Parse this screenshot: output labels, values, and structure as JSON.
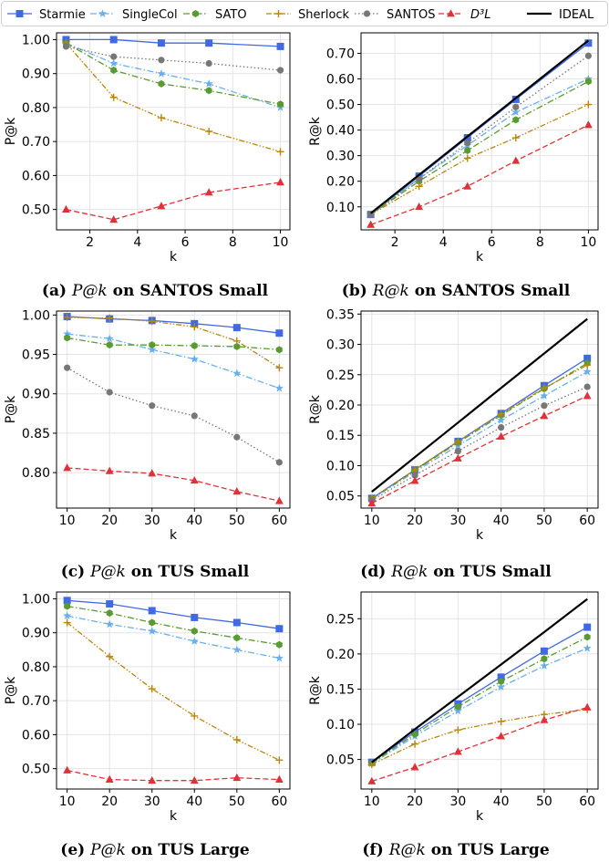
{
  "legend": [
    {
      "name": "Starmie",
      "color": "#4169e1",
      "marker": "square",
      "dash": "solid"
    },
    {
      "name": "SingleCol",
      "color": "#6aaeea",
      "marker": "star",
      "dash": "dashdot"
    },
    {
      "name": "SATO",
      "color": "#5a9a32",
      "marker": "hex",
      "dash": "dashdot"
    },
    {
      "name": "Sherlock",
      "color": "#b8860b",
      "marker": "plus",
      "dash": "dashdotdot"
    },
    {
      "name": "SANTOS",
      "color": "#777777",
      "marker": "circle",
      "dash": "dotted"
    },
    {
      "name": "D³L",
      "color": "#e0303a",
      "marker": "triangle",
      "dash": "dashed",
      "italic": true
    },
    {
      "name": "IDEAL",
      "color": "#000000",
      "marker": "none",
      "dash": "solid"
    }
  ],
  "captions": [
    {
      "label": "(a)",
      "metric": "P@k",
      "rest": "on SANTOS Small"
    },
    {
      "label": "(b)",
      "metric": "R@k",
      "rest": "on SANTOS Small"
    },
    {
      "label": "(c)",
      "metric": "P@k",
      "rest": "on TUS Small"
    },
    {
      "label": "(d)",
      "metric": "R@k",
      "rest": "on TUS Small"
    },
    {
      "label": "(e)",
      "metric": "P@k",
      "rest": "on TUS Large"
    },
    {
      "label": "(f)",
      "metric": "R@k",
      "rest": "on TUS Large"
    }
  ],
  "chart_data": [
    {
      "type": "line",
      "xlabel": "k",
      "ylabel": "P@k",
      "xlim": [
        0.6,
        10.4
      ],
      "ylim": [
        0.44,
        1.02
      ],
      "xticks": [
        2,
        4,
        6,
        8,
        10
      ],
      "yticks": [
        0.5,
        0.6,
        0.7,
        0.8,
        0.9,
        1.0
      ],
      "yfmt": 2,
      "x": [
        1,
        3,
        5,
        7,
        10
      ],
      "grid": true,
      "series": [
        {
          "name": "Starmie",
          "values": [
            1.0,
            1.0,
            0.99,
            0.99,
            0.98
          ]
        },
        {
          "name": "SingleCol",
          "values": [
            0.99,
            0.93,
            0.9,
            0.87,
            0.8
          ]
        },
        {
          "name": "SATO",
          "values": [
            0.99,
            0.91,
            0.87,
            0.85,
            0.81
          ]
        },
        {
          "name": "Sherlock",
          "values": [
            0.99,
            0.83,
            0.77,
            0.73,
            0.67
          ]
        },
        {
          "name": "SANTOS",
          "values": [
            0.98,
            0.95,
            0.94,
            0.93,
            0.91
          ]
        },
        {
          "name": "D³L",
          "values": [
            0.5,
            0.47,
            0.51,
            0.55,
            0.58
          ]
        }
      ]
    },
    {
      "type": "line",
      "xlabel": "k",
      "ylabel": "R@k",
      "xlim": [
        0.6,
        10.4
      ],
      "ylim": [
        0.01,
        0.78
      ],
      "xticks": [
        2,
        4,
        6,
        8,
        10
      ],
      "yticks": [
        0.1,
        0.2,
        0.3,
        0.4,
        0.5,
        0.6,
        0.7
      ],
      "yfmt": 2,
      "x": [
        1,
        3,
        5,
        7,
        10
      ],
      "grid": true,
      "series": [
        {
          "name": "Starmie",
          "values": [
            0.07,
            0.22,
            0.37,
            0.52,
            0.74
          ]
        },
        {
          "name": "SingleCol",
          "values": [
            0.07,
            0.21,
            0.34,
            0.47,
            0.6
          ]
        },
        {
          "name": "SATO",
          "values": [
            0.07,
            0.2,
            0.32,
            0.44,
            0.59
          ]
        },
        {
          "name": "Sherlock",
          "values": [
            0.07,
            0.18,
            0.29,
            0.37,
            0.5
          ]
        },
        {
          "name": "SANTOS",
          "values": [
            0.07,
            0.21,
            0.35,
            0.49,
            0.69
          ]
        },
        {
          "name": "D³L",
          "values": [
            0.03,
            0.1,
            0.18,
            0.28,
            0.42
          ]
        },
        {
          "name": "IDEAL",
          "values": [
            0.075,
            0.225,
            0.375,
            0.525,
            0.75
          ]
        }
      ]
    },
    {
      "type": "line",
      "xlabel": "k",
      "ylabel": "P@k",
      "xlim": [
        7.5,
        62.5
      ],
      "ylim": [
        0.755,
        1.005
      ],
      "xticks": [
        10,
        20,
        30,
        40,
        50,
        60
      ],
      "yticks": [
        0.8,
        0.85,
        0.9,
        0.95,
        1.0
      ],
      "yfmt": 2,
      "x": [
        10,
        20,
        30,
        40,
        50,
        60
      ],
      "grid": true,
      "series": [
        {
          "name": "Starmie",
          "values": [
            0.998,
            0.995,
            0.993,
            0.989,
            0.984,
            0.977
          ]
        },
        {
          "name": "SingleCol",
          "values": [
            0.976,
            0.97,
            0.956,
            0.944,
            0.926,
            0.907
          ]
        },
        {
          "name": "SATO",
          "values": [
            0.971,
            0.962,
            0.962,
            0.961,
            0.96,
            0.956
          ]
        },
        {
          "name": "Sherlock",
          "values": [
            0.997,
            0.996,
            0.992,
            0.985,
            0.967,
            0.933
          ]
        },
        {
          "name": "SANTOS",
          "values": [
            0.933,
            0.902,
            0.885,
            0.872,
            0.845,
            0.813
          ]
        },
        {
          "name": "D³L",
          "values": [
            0.806,
            0.802,
            0.799,
            0.79,
            0.776,
            0.764
          ]
        }
      ]
    },
    {
      "type": "line",
      "xlabel": "k",
      "ylabel": "R@k",
      "xlim": [
        7.5,
        62.5
      ],
      "ylim": [
        0.03,
        0.355
      ],
      "xticks": [
        10,
        20,
        30,
        40,
        50,
        60
      ],
      "yticks": [
        0.05,
        0.1,
        0.15,
        0.2,
        0.25,
        0.3,
        0.35
      ],
      "yfmt": 2,
      "x": [
        10,
        20,
        30,
        40,
        50,
        60
      ],
      "grid": true,
      "series": [
        {
          "name": "Starmie",
          "values": [
            0.046,
            0.093,
            0.14,
            0.186,
            0.232,
            0.277
          ]
        },
        {
          "name": "SingleCol",
          "values": [
            0.045,
            0.09,
            0.133,
            0.175,
            0.215,
            0.255
          ]
        },
        {
          "name": "SATO",
          "values": [
            0.045,
            0.092,
            0.138,
            0.183,
            0.227,
            0.269
          ]
        },
        {
          "name": "Sherlock",
          "values": [
            0.046,
            0.093,
            0.14,
            0.185,
            0.228,
            0.266
          ]
        },
        {
          "name": "SANTOS",
          "values": [
            0.043,
            0.084,
            0.124,
            0.163,
            0.199,
            0.23
          ]
        },
        {
          "name": "D³L",
          "values": [
            0.038,
            0.075,
            0.112,
            0.148,
            0.182,
            0.215
          ]
        },
        {
          "name": "IDEAL",
          "values": [
            0.057,
            0.114,
            0.171,
            0.228,
            0.285,
            0.342
          ]
        }
      ]
    },
    {
      "type": "line",
      "xlabel": "k",
      "ylabel": "P@k",
      "xlim": [
        7.5,
        62.5
      ],
      "ylim": [
        0.44,
        1.02
      ],
      "xticks": [
        10,
        20,
        30,
        40,
        50,
        60
      ],
      "yticks": [
        0.5,
        0.6,
        0.7,
        0.8,
        0.9,
        1.0
      ],
      "yfmt": 2,
      "x": [
        10,
        20,
        30,
        40,
        50,
        60
      ],
      "grid": true,
      "series": [
        {
          "name": "Starmie",
          "values": [
            0.995,
            0.985,
            0.965,
            0.945,
            0.93,
            0.912
          ]
        },
        {
          "name": "SingleCol",
          "values": [
            0.95,
            0.925,
            0.905,
            0.875,
            0.85,
            0.825
          ]
        },
        {
          "name": "SATO",
          "values": [
            0.978,
            0.958,
            0.93,
            0.905,
            0.885,
            0.865
          ]
        },
        {
          "name": "Sherlock",
          "values": [
            0.93,
            0.83,
            0.735,
            0.655,
            0.585,
            0.525
          ]
        },
        {
          "name": "D³L",
          "values": [
            0.495,
            0.468,
            0.465,
            0.465,
            0.473,
            0.468
          ]
        }
      ]
    },
    {
      "type": "line",
      "xlabel": "k",
      "ylabel": "R@k",
      "xlim": [
        7.5,
        62.5
      ],
      "ylim": [
        0.008,
        0.288
      ],
      "xticks": [
        10,
        20,
        30,
        40,
        50,
        60
      ],
      "yticks": [
        0.05,
        0.1,
        0.15,
        0.2,
        0.25
      ],
      "yfmt": 2,
      "x": [
        10,
        20,
        30,
        40,
        50,
        60
      ],
      "grid": true,
      "series": [
        {
          "name": "Starmie",
          "values": [
            0.046,
            0.089,
            0.129,
            0.167,
            0.204,
            0.238
          ]
        },
        {
          "name": "SingleCol",
          "values": [
            0.044,
            0.083,
            0.119,
            0.153,
            0.183,
            0.208
          ]
        },
        {
          "name": "SATO",
          "values": [
            0.045,
            0.086,
            0.125,
            0.161,
            0.193,
            0.224
          ]
        },
        {
          "name": "Sherlock",
          "values": [
            0.043,
            0.072,
            0.092,
            0.104,
            0.114,
            0.121
          ]
        },
        {
          "name": "D³L",
          "values": [
            0.019,
            0.039,
            0.061,
            0.083,
            0.106,
            0.124
          ]
        },
        {
          "name": "IDEAL",
          "values": [
            0.046,
            0.093,
            0.139,
            0.185,
            0.231,
            0.278
          ]
        }
      ]
    }
  ]
}
